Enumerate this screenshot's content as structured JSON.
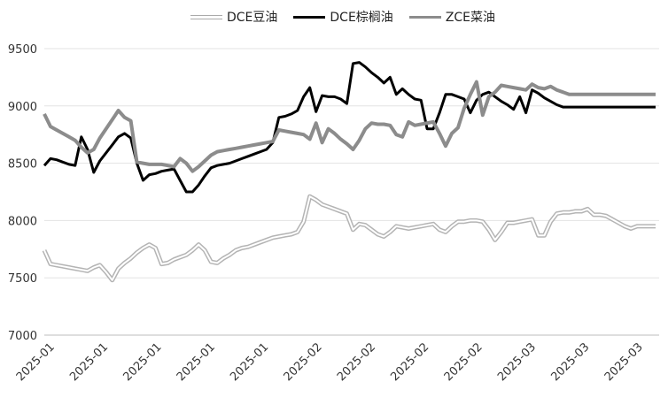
{
  "chart_data": {
    "type": "line",
    "title": "",
    "xlabel": "",
    "ylabel": "",
    "ylim": [
      7000,
      9500
    ],
    "yticks": [
      7000,
      7500,
      8000,
      8500,
      9000,
      9500
    ],
    "xtick_labels": [
      "2025-01",
      "2025-01",
      "2025-01",
      "2025-01",
      "2025-01",
      "2025-02",
      "2025-02",
      "2025-02",
      "2025-02",
      "2025-03",
      "2025-03",
      "2025-03"
    ],
    "grid": "horizontal",
    "legend_position": "top",
    "x": [
      0,
      1,
      2,
      3,
      4,
      5,
      6,
      7,
      8,
      9,
      10,
      11,
      12,
      13,
      14,
      15,
      16,
      17,
      18,
      19,
      20,
      21,
      22,
      23,
      24,
      25,
      26,
      27,
      28,
      29,
      30,
      31,
      32,
      33,
      34,
      35,
      36,
      37,
      38,
      39,
      40,
      41,
      42,
      43,
      44,
      45,
      46,
      47,
      48,
      49,
      50,
      51,
      52,
      53,
      54,
      55,
      56,
      57,
      58,
      59,
      60,
      61,
      62,
      63,
      64,
      65,
      66,
      67,
      68,
      69,
      70,
      71,
      72,
      73,
      74,
      75,
      76,
      77,
      78,
      79,
      80,
      81,
      82,
      83,
      84,
      85,
      86,
      87,
      88,
      89,
      90,
      91,
      92,
      93,
      94,
      95,
      96,
      97,
      98,
      99
    ],
    "series": [
      {
        "name": "DCE豆油",
        "color": "#d2d2d2",
        "style": "outline",
        "values": [
          7740,
          7620,
          7610,
          7600,
          7590,
          7580,
          7570,
          7560,
          7590,
          7610,
          7550,
          7480,
          7580,
          7630,
          7670,
          7720,
          7760,
          7790,
          7760,
          7620,
          7630,
          7660,
          7680,
          7700,
          7740,
          7790,
          7740,
          7640,
          7630,
          7670,
          7700,
          7740,
          7760,
          7770,
          7790,
          7810,
          7830,
          7850,
          7860,
          7870,
          7880,
          7900,
          7990,
          8210,
          8180,
          8140,
          8120,
          8100,
          8080,
          8060,
          7920,
          7970,
          7960,
          7920,
          7880,
          7860,
          7900,
          7950,
          7940,
          7930,
          7940,
          7950,
          7960,
          7970,
          7920,
          7900,
          7950,
          7990,
          7990,
          8000,
          8000,
          7990,
          7920,
          7830,
          7900,
          7980,
          7980,
          7990,
          8000,
          8010,
          7870,
          7870,
          7990,
          8060,
          8070,
          8070,
          8080,
          8080,
          8100,
          8050,
          8050,
          8040,
          8010,
          7980,
          7950,
          7930,
          7950,
          7950,
          7950,
          7950
        ]
      },
      {
        "name": "DCE棕榈油",
        "color": "#000000",
        "style": "solid",
        "values": [
          8480,
          8540,
          8530,
          8510,
          8490,
          8480,
          8730,
          8620,
          8420,
          8520,
          8590,
          8660,
          8730,
          8760,
          8720,
          8500,
          8350,
          8400,
          8410,
          8430,
          8440,
          8450,
          8350,
          8250,
          8250,
          8310,
          8390,
          8460,
          8480,
          8490,
          8500,
          8520,
          8540,
          8560,
          8580,
          8600,
          8620,
          8680,
          8900,
          8910,
          8930,
          8960,
          9080,
          9160,
          8950,
          9090,
          9080,
          9080,
          9060,
          9020,
          9370,
          9380,
          9340,
          9290,
          9250,
          9200,
          9250,
          9100,
          9150,
          9100,
          9060,
          9050,
          8800,
          8800,
          8940,
          9100,
          9100,
          9080,
          9060,
          8940,
          9050,
          9100,
          9120,
          9080,
          9040,
          9010,
          8970,
          9080,
          8940,
          9140,
          9110,
          9070,
          9040,
          9010,
          8990,
          8990,
          8990,
          8990,
          8990,
          8990,
          8990,
          8990,
          8990,
          8990,
          8990,
          8990,
          8990,
          8990,
          8990,
          8990
        ]
      },
      {
        "name": "ZCE菜油",
        "color": "#8c8c8c",
        "style": "solid",
        "values": [
          8930,
          8820,
          8790,
          8760,
          8730,
          8700,
          8640,
          8590,
          8620,
          8720,
          8800,
          8880,
          8960,
          8900,
          8870,
          8510,
          8500,
          8490,
          8490,
          8490,
          8480,
          8470,
          8540,
          8500,
          8430,
          8470,
          8520,
          8570,
          8600,
          8610,
          8620,
          8630,
          8640,
          8650,
          8660,
          8670,
          8680,
          8690,
          8790,
          8780,
          8770,
          8760,
          8750,
          8710,
          8850,
          8680,
          8800,
          8760,
          8710,
          8670,
          8620,
          8700,
          8800,
          8850,
          8840,
          8840,
          8830,
          8750,
          8730,
          8860,
          8830,
          8840,
          8850,
          8860,
          8760,
          8650,
          8760,
          8810,
          8980,
          9100,
          9210,
          8920,
          9080,
          9120,
          9180,
          9170,
          9160,
          9150,
          9140,
          9190,
          9160,
          9150,
          9170,
          9140,
          9120,
          9100,
          9100,
          9100,
          9100,
          9100,
          9100,
          9100,
          9100,
          9100,
          9100,
          9100,
          9100,
          9100,
          9100,
          9100
        ]
      }
    ]
  }
}
